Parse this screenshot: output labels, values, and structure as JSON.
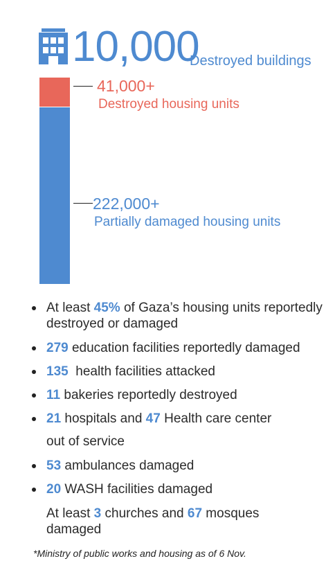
{
  "header": {
    "total_buildings": "10,000",
    "total_buildings_label": "Destroyed buildings",
    "icon": "building-icon"
  },
  "bar": {
    "destroyed_value": "41,000+",
    "destroyed_label": "Destroyed housing units",
    "partial_value": "222,000+",
    "partial_label": "Partially damaged housing units",
    "destroyed_color": "#e8675a",
    "partial_color": "#4e8ad0"
  },
  "bullets": [
    {
      "pre": "At least ",
      "num": "45%",
      "post": " of Gaza’s housing units reportedly destroyed or damaged"
    },
    {
      "pre": "",
      "num": "279",
      "post": " education facilities reportedly damaged"
    },
    {
      "pre": "",
      "num": "135",
      "post": "  health facilities attacked"
    },
    {
      "pre": "",
      "num": "11",
      "post": " bakeries reportedly destroyed"
    },
    {
      "pre": "",
      "num": "21",
      "mid": " hospitals and ",
      "num2": "47",
      "post": " Health care center",
      "line2": "out of service"
    },
    {
      "pre": "",
      "num": "53",
      "post": " ambulances damaged"
    },
    {
      "pre": "",
      "num": "20",
      "post": " WASH facilities damaged"
    }
  ],
  "extra": {
    "pre": "At least ",
    "num": "3",
    "mid": " churches and ",
    "num2": "67",
    "post": " mosques",
    "line2": "damaged"
  },
  "footnote": "*Ministry of public works and housing as of 6 Nov."
}
